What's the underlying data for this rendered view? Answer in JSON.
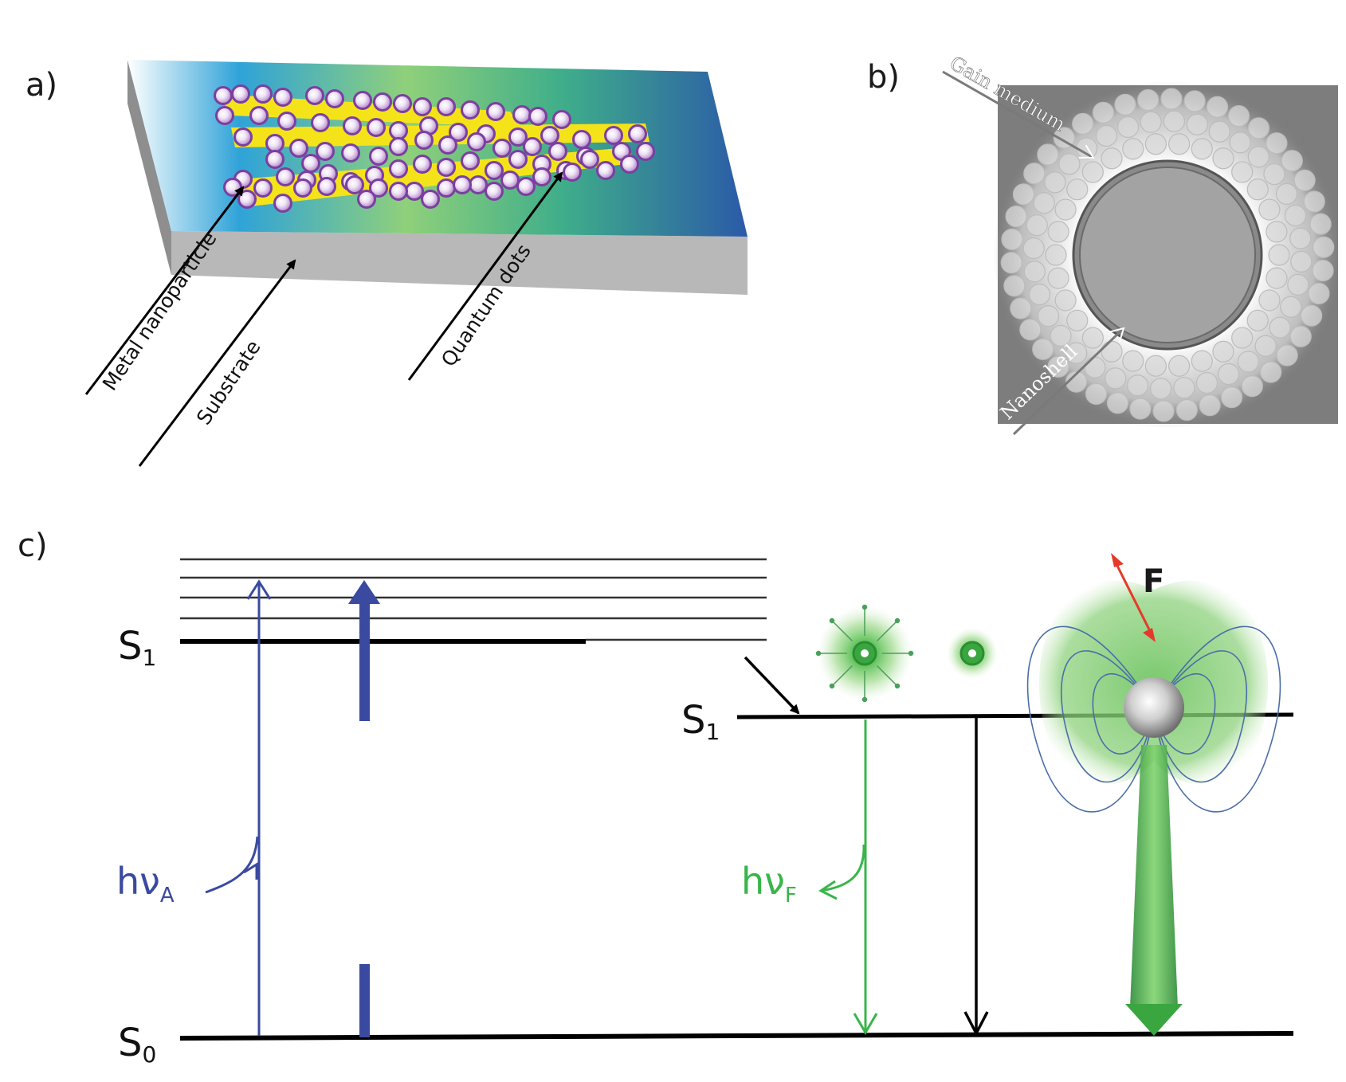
{
  "panels": {
    "a": {
      "label": "a)",
      "callouts": {
        "metal": "Metal nanoparticle",
        "substrate": "Substrate",
        "qd": "Quantum dots"
      }
    },
    "b": {
      "label": "b)",
      "callouts": {
        "gain": "Gain medium",
        "shell": "Nanoshell"
      }
    },
    "c": {
      "label": "c)",
      "levels": {
        "s1_left": "S",
        "s1_left_sub": "1",
        "s1_right": "S",
        "s1_right_sub": "1",
        "s0": "S",
        "s0_sub": "0"
      },
      "photons": {
        "absorb": "hν",
        "absorb_sub": "A",
        "fluor": "hν",
        "fluor_sub": "F"
      },
      "force": "F"
    }
  },
  "colors": {
    "absorption_blue": "#3a4aa0",
    "fluorescence_green": "#39b54a",
    "nanoparticle_purple": "#7b3fa0",
    "nanorod_yellow": "#f5e31a",
    "force_red": "#e53a2a"
  }
}
